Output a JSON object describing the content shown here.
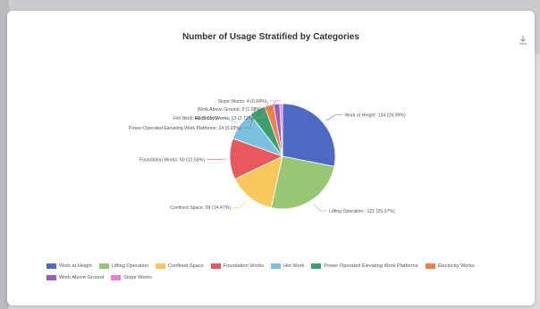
{
  "chart_data": {
    "type": "pie",
    "title": "Number of Usage Stratified by Categories",
    "slices": [
      {
        "label": "Work at Height",
        "value": 134,
        "display": "Work at Height: 134 (28.09%)",
        "color": "#4e69c4"
      },
      {
        "label": "Lifting Operation",
        "value": 121,
        "display": "Lifting Operation : 121 (25.37%)",
        "color": "#97c774"
      },
      {
        "label": "Confined Space",
        "value": 69,
        "display": "Confined Space: 69 (14.47%)",
        "color": "#f8c85c"
      },
      {
        "label": "Foundation Works",
        "value": 60,
        "display": "Foundation Works: 60 (12.58%)",
        "color": "#e8585c"
      },
      {
        "label": "Hot Work",
        "value": 43,
        "display": "Hot Work: 43 (9.01%)",
        "color": "#7bc0de"
      },
      {
        "label": "Power-Operated Elevating Work Platforms",
        "value": 24,
        "display": "Power-Operated Elevating Work Platforms: 24 (5.03%)",
        "color": "#3b9e6e"
      },
      {
        "label": "Electricity Works",
        "value": 13,
        "display": "Electricity Works: 13 (2.72%)",
        "color": "#ee8048"
      },
      {
        "label": "Work Above Ground",
        "value": 9,
        "display": "Work Above Ground: 9 (1.89%)",
        "color": "#9b5cbd"
      },
      {
        "label": "Slope Works",
        "value": 4,
        "display": "Slope Works: 4 (0.84%)",
        "color": "#e67fd0"
      }
    ],
    "legend_position": "bottom"
  },
  "icons": {
    "download": "download-icon"
  }
}
